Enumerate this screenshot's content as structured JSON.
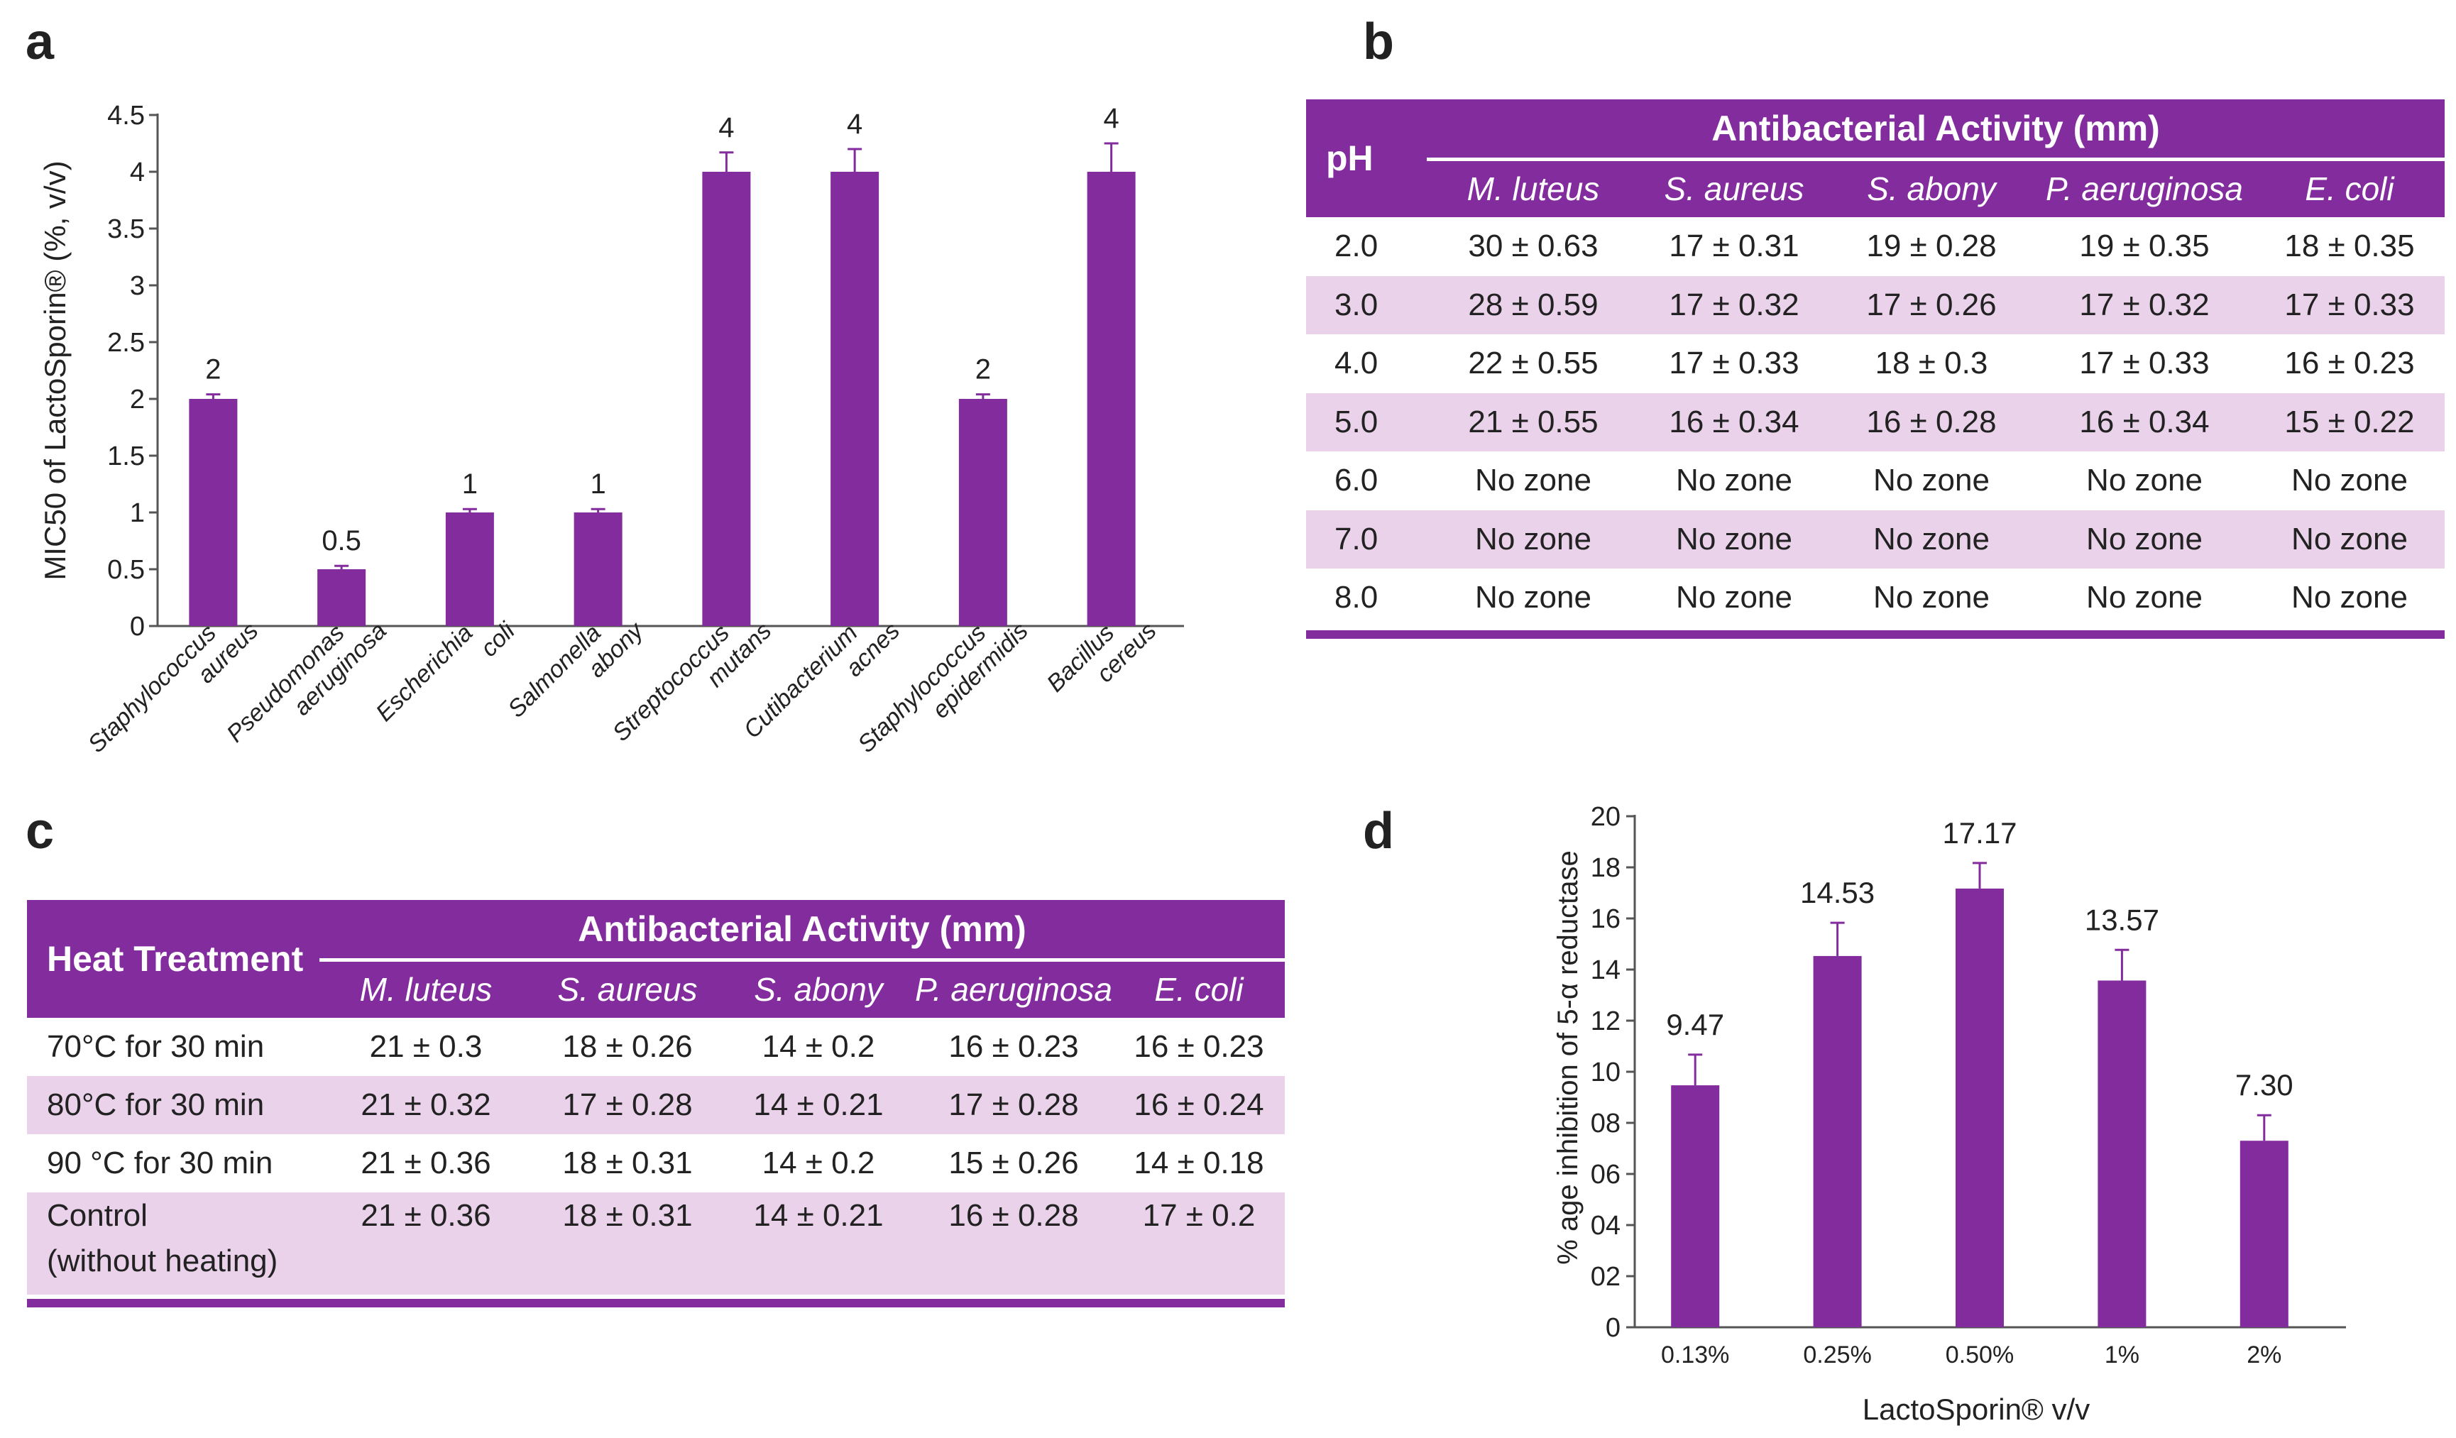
{
  "panels": {
    "a": "a",
    "b": "b",
    "c": "c",
    "d": "d"
  },
  "colors": {
    "accent": "#832c9e",
    "shade": "#ead2ea"
  },
  "chart_data": [
    {
      "type": "bar",
      "panel": "a",
      "title": "",
      "xlabel": "",
      "ylabel": "MIC50 of LactoSporin® (%, v/v)",
      "ylim": [
        0,
        4.5
      ],
      "yticks": [
        "0",
        "0.5",
        "1",
        "1.5",
        "2",
        "2.5",
        "3",
        "3.5",
        "4",
        "4.5"
      ],
      "categories": [
        [
          "Staphylococcus",
          "aureus"
        ],
        [
          "Pseudomonas",
          "aeruginosa"
        ],
        [
          "Escherichia",
          "coli"
        ],
        [
          "Salmonella",
          "abony"
        ],
        [
          "Streptococcus",
          "mutans"
        ],
        [
          "Cutibacterium",
          "acnes"
        ],
        [
          "Staphylococcus",
          "epidermidis"
        ],
        [
          "Bacillus",
          "cereus"
        ]
      ],
      "values": [
        2,
        0.5,
        1,
        1,
        4,
        4,
        2,
        4
      ],
      "errors": [
        0.04,
        0.03,
        0.03,
        0.03,
        0.17,
        0.2,
        0.04,
        0.25
      ],
      "labels": [
        "2",
        "0.5",
        "1",
        "1",
        "4",
        "4",
        "2",
        "4"
      ]
    },
    {
      "type": "bar",
      "panel": "d",
      "title": "",
      "xlabel": "LactoSporin® v/v",
      "ylabel": "% age inhibition of 5-α reductase",
      "ylim": [
        0,
        20
      ],
      "yticks": [
        "0",
        "02",
        "04",
        "06",
        "08",
        "10",
        "12",
        "14",
        "16",
        "18",
        "20"
      ],
      "categories": [
        "0.13%",
        "0.25%",
        "0.50%",
        "1%",
        "2%"
      ],
      "values": [
        9.47,
        14.53,
        17.17,
        13.57,
        7.3
      ],
      "errors": [
        1.2,
        1.3,
        1.0,
        1.2,
        1.0
      ],
      "labels": [
        "9.47",
        "14.53",
        "17.17",
        "13.57",
        "7.30"
      ]
    }
  ],
  "table_b": {
    "corner": "pH",
    "title": "Antibacterial Activity (mm)",
    "columns": [
      "M. luteus",
      "S. aureus",
      "S. abony",
      "P. aeruginosa",
      "E. coli"
    ],
    "rows": [
      {
        "label": "2.0",
        "cells": [
          "30 ± 0.63",
          "17 ± 0.31",
          "19 ± 0.28",
          "19 ± 0.35",
          "18 ± 0.35"
        ]
      },
      {
        "label": "3.0",
        "cells": [
          "28 ± 0.59",
          "17 ± 0.32",
          "17 ± 0.26",
          "17 ± 0.32",
          "17 ± 0.33"
        ]
      },
      {
        "label": "4.0",
        "cells": [
          "22 ± 0.55",
          "17 ± 0.33",
          "18 ± 0.3",
          "17 ± 0.33",
          "16 ± 0.23"
        ]
      },
      {
        "label": "5.0",
        "cells": [
          "21 ± 0.55",
          "16 ± 0.34",
          "16 ± 0.28",
          "16 ± 0.34",
          "15 ± 0.22"
        ]
      },
      {
        "label": "6.0",
        "cells": [
          "No zone",
          "No zone",
          "No zone",
          "No zone",
          "No zone"
        ]
      },
      {
        "label": "7.0",
        "cells": [
          "No zone",
          "No zone",
          "No zone",
          "No zone",
          "No zone"
        ]
      },
      {
        "label": "8.0",
        "cells": [
          "No zone",
          "No zone",
          "No zone",
          "No zone",
          "No zone"
        ]
      }
    ]
  },
  "table_c": {
    "corner": "Heat Treatment",
    "title": "Antibacterial Activity (mm)",
    "columns": [
      "M. luteus",
      "S. aureus",
      "S. abony",
      "P. aeruginosa",
      "E. coli"
    ],
    "rows": [
      {
        "label": "70°C for 30 min",
        "cells": [
          "21 ± 0.3",
          "18 ± 0.26",
          "14 ± 0.2",
          "16 ± 0.23",
          "16 ± 0.23"
        ]
      },
      {
        "label": "80°C for 30 min",
        "cells": [
          "21 ± 0.32",
          "17 ± 0.28",
          "14 ± 0.21",
          "17 ± 0.28",
          "16 ± 0.24"
        ]
      },
      {
        "label": "90 °C for 30 min",
        "cells": [
          "21 ± 0.36",
          "18 ± 0.31",
          "14 ± 0.2",
          "15 ± 0.26",
          "14 ± 0.18"
        ]
      },
      {
        "label_line1": "Control",
        "label_line2": "(without heating)",
        "cells": [
          "21 ± 0.36",
          "18 ± 0.31",
          "14 ± 0.21",
          "16 ± 0.28",
          "17 ± 0.2"
        ]
      }
    ]
  }
}
